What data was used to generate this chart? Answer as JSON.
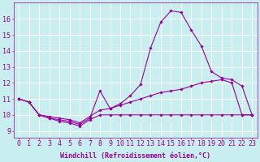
{
  "background_color": "#c8eef0",
  "grid_color": "#ffffff",
  "line_color": "#990099",
  "xlim": [
    -0.5,
    23.5
  ],
  "ylim": [
    8.6,
    17.0
  ],
  "xticks": [
    0,
    1,
    2,
    3,
    4,
    5,
    6,
    7,
    8,
    9,
    10,
    11,
    12,
    13,
    14,
    15,
    16,
    17,
    18,
    19,
    20,
    21,
    22,
    23
  ],
  "yticks": [
    9,
    10,
    11,
    12,
    13,
    14,
    15,
    16
  ],
  "xlabel": "Windchill (Refroidissement éolien,°C)",
  "font_size_xlabel": 6.0,
  "font_size_ticks": 6.0,
  "line_peak_y": [
    11.0,
    10.8,
    10.0,
    9.8,
    9.7,
    9.6,
    9.4,
    9.8,
    11.5,
    10.4,
    10.7,
    11.2,
    11.9,
    14.2,
    15.8,
    16.5,
    16.4,
    15.3,
    14.3,
    12.7,
    12.3,
    12.2,
    11.8,
    10.0
  ],
  "line_mid_y": [
    11.0,
    10.8,
    10.0,
    9.9,
    9.8,
    9.7,
    9.5,
    9.9,
    10.3,
    10.4,
    10.6,
    10.8,
    11.0,
    11.2,
    11.4,
    11.5,
    11.6,
    11.8,
    12.0,
    12.1,
    12.2,
    12.0,
    10.0,
    10.0
  ],
  "line_flat_y": [
    11.0,
    10.8,
    10.0,
    9.8,
    9.6,
    9.5,
    9.3,
    9.7,
    10.0,
    10.0,
    10.0,
    10.0,
    10.0,
    10.0,
    10.0,
    10.0,
    10.0,
    10.0,
    10.0,
    10.0,
    10.0,
    10.0,
    10.0,
    10.0
  ],
  "hours": [
    0,
    1,
    2,
    3,
    4,
    5,
    6,
    7,
    8,
    9,
    10,
    11,
    12,
    13,
    14,
    15,
    16,
    17,
    18,
    19,
    20,
    21,
    22,
    23
  ]
}
